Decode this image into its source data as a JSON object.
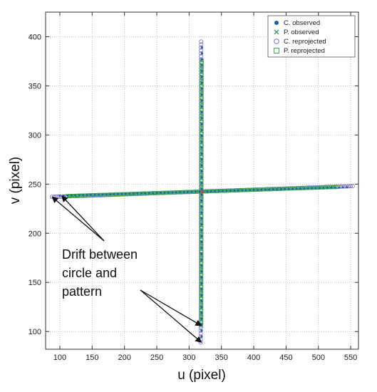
{
  "chart_data": {
    "type": "scatter",
    "xlabel": "u (pixel)",
    "ylabel": "v (pixel)",
    "xlim": [
      78,
      562
    ],
    "ylim": [
      82,
      425
    ],
    "x_ticks": [
      100,
      150,
      200,
      250,
      300,
      350,
      400,
      450,
      500,
      550
    ],
    "y_ticks": [
      100,
      150,
      200,
      250,
      300,
      350,
      400
    ],
    "grid": "dotted",
    "legend_position": "top-right",
    "legend": [
      {
        "label": "C. observed",
        "marker": "filled-circle",
        "color": "#1f5fa8"
      },
      {
        "label": "P. observed",
        "marker": "x",
        "color": "#2e9e5e"
      },
      {
        "label": "C. reprojected",
        "marker": "open-circle",
        "color": "#7d6bc9"
      },
      {
        "label": "P. reprojected",
        "marker": "open-square",
        "color": "#3ab04a"
      }
    ],
    "series": [
      {
        "name": "C. reprojected",
        "color": "#7d6bc9",
        "segments": [
          {
            "orientation": "horizontal",
            "x_range": [
              88,
              555
            ],
            "y_start": 237,
            "y_end": 248,
            "step": 3
          },
          {
            "orientation": "vertical",
            "x": 318,
            "x_drift": 0.6,
            "y_range": [
              89,
              396
            ],
            "step": 3
          }
        ]
      },
      {
        "name": "P. reprojected",
        "color": "#3ab04a",
        "segments": [
          {
            "orientation": "horizontal",
            "x_range": [
              112,
              530
            ],
            "y_start": 238,
            "y_end": 247,
            "step": 3
          },
          {
            "orientation": "vertical",
            "x": 319,
            "x_drift": 0.6,
            "y_range": [
              106,
              378
            ],
            "step": 3
          }
        ]
      },
      {
        "name": "P. observed",
        "color": "#2e9e5e",
        "segments": [
          {
            "orientation": "horizontal",
            "x_range": [
              115,
              525
            ],
            "y_start": 238,
            "y_end": 247,
            "step": 4
          },
          {
            "orientation": "vertical",
            "x": 319,
            "x_drift": 0.6,
            "y_range": [
              108,
              376
            ],
            "step": 4
          }
        ]
      },
      {
        "name": "C. observed",
        "color": "#1f5fa8",
        "segments": [
          {
            "orientation": "horizontal",
            "x_range": [
              100,
              545
            ],
            "y_start": 238,
            "y_end": 247,
            "step": 6
          },
          {
            "orientation": "vertical",
            "x": 319,
            "x_drift": 0.6,
            "y_range": [
              95,
              390
            ],
            "step": 6
          }
        ]
      }
    ],
    "center_marker": {
      "x": 320,
      "y": 242,
      "color": "#d0473a"
    },
    "annotation": {
      "lines": [
        "Drift between",
        "circle and",
        "pattern"
      ],
      "arrows": [
        {
          "label_anchor": "upper",
          "target": [
            88,
            237
          ]
        },
        {
          "label_anchor": "upper",
          "target": [
            103,
            238
          ]
        },
        {
          "label_anchor": "lower",
          "target": [
            319,
            106
          ]
        },
        {
          "label_anchor": "lower",
          "target": [
            319,
            89
          ]
        }
      ]
    }
  }
}
